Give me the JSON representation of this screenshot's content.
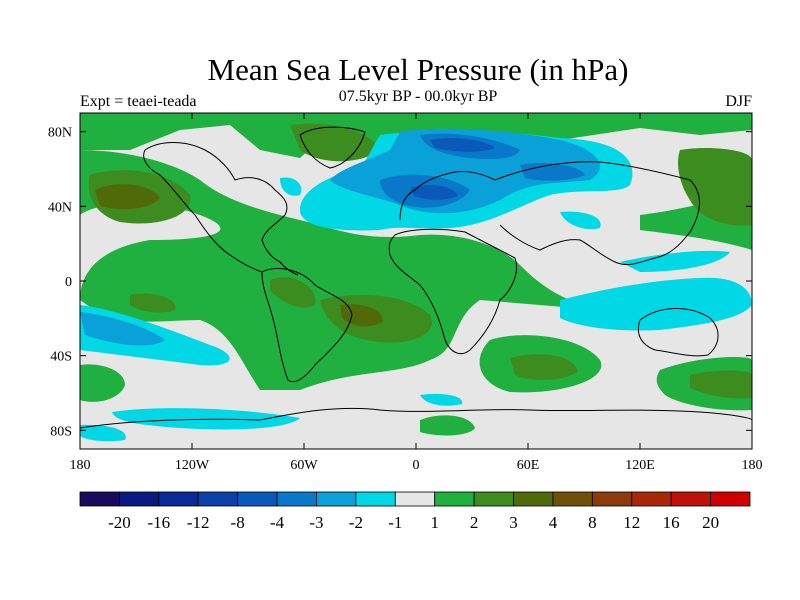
{
  "header": {
    "title": "Mean Sea Level Pressure (in hPa)",
    "subtitle": "07.5kyr BP - 00.0kyr BP",
    "left_label": "Expt = teaei-teada",
    "right_label": "DJF"
  },
  "axes": {
    "lon_ticks": [
      {
        "value": -180,
        "label": "180"
      },
      {
        "value": -120,
        "label": "120W"
      },
      {
        "value": -60,
        "label": "60W"
      },
      {
        "value": 0,
        "label": "0"
      },
      {
        "value": 60,
        "label": "60E"
      },
      {
        "value": 120,
        "label": "120E"
      },
      {
        "value": 180,
        "label": "180"
      }
    ],
    "lat_ticks": [
      {
        "value": 80,
        "label": "80N"
      },
      {
        "value": 40,
        "label": "40N"
      },
      {
        "value": 0,
        "label": "0"
      },
      {
        "value": -40,
        "label": "40S"
      },
      {
        "value": -80,
        "label": "80S"
      }
    ],
    "lon_range": [
      -180,
      180
    ],
    "lat_range": [
      -90,
      90
    ]
  },
  "colorbar": {
    "labels": [
      "-20",
      "-16",
      "-12",
      "-8",
      "-4",
      "-3",
      "-2",
      "-1",
      "1",
      "2",
      "3",
      "4",
      "8",
      "12",
      "16",
      "20"
    ],
    "colors": [
      "#1a0a5e",
      "#0a1a80",
      "#0a2a98",
      "#0a40a8",
      "#0a58b8",
      "#0a78c8",
      "#0aa0d8",
      "#00d8e6",
      "#e6e6e6",
      "#20b040",
      "#3c8c20",
      "#506a0a",
      "#6e500a",
      "#8c3c0a",
      "#a82808",
      "#c01008",
      "#d00000"
    ]
  },
  "map_colors": {
    "neutral": "#e6e6e6",
    "pos_1": "#20b040",
    "pos_2": "#3c8c20",
    "pos_3": "#506a0a",
    "pos_4": "#6e500a",
    "neg_1": "#00d8e6",
    "neg_2": "#0aa0d8",
    "neg_3": "#0a78c8",
    "neg_4": "#0a58b8",
    "neg_5": "#0a40a8",
    "coast": "#000000"
  }
}
